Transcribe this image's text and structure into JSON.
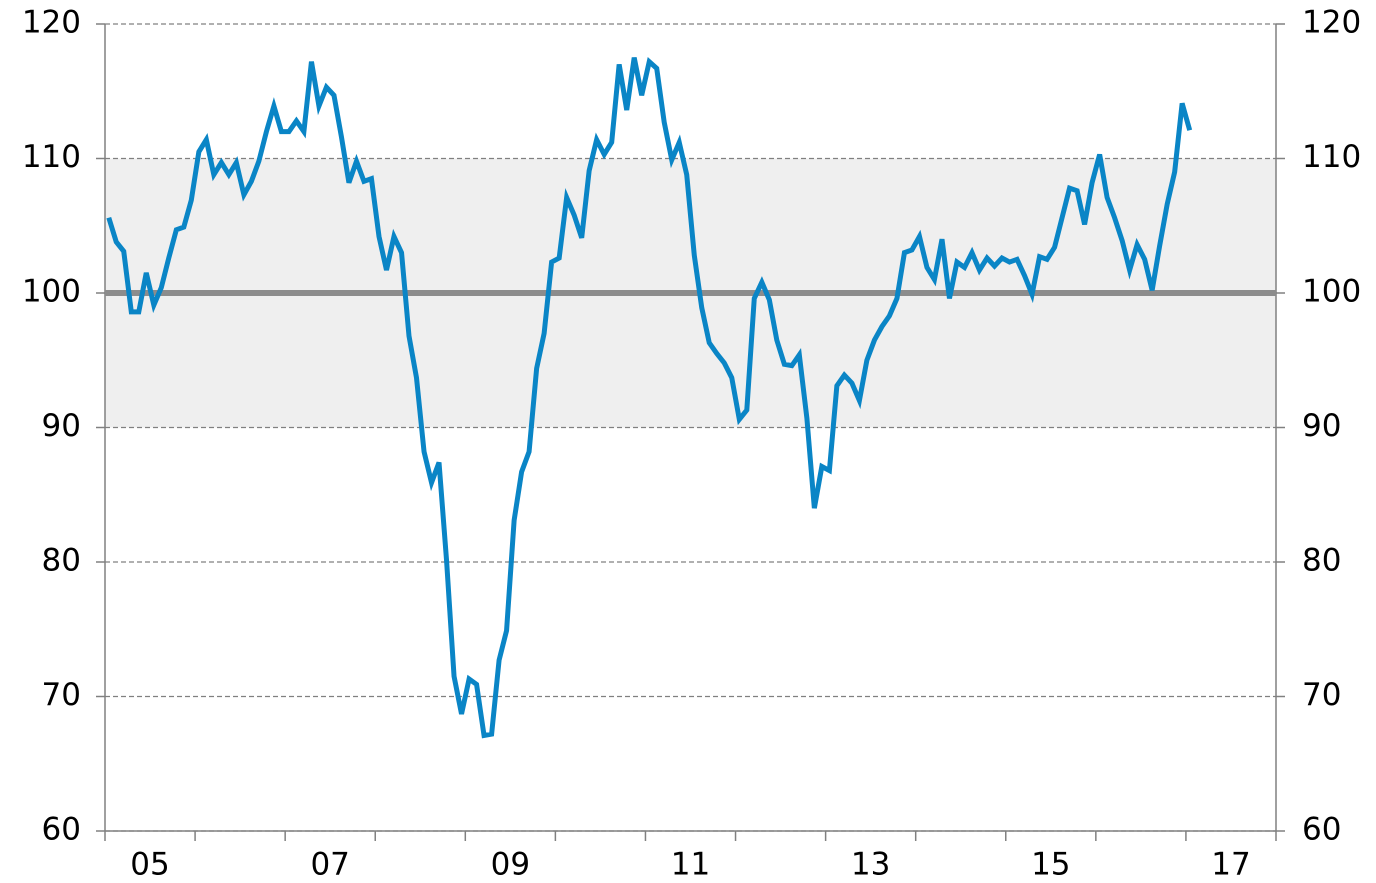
{
  "chart_data": {
    "type": "line",
    "x": [
      2005.042,
      2005.125,
      2005.208,
      2005.292,
      2005.375,
      2005.458,
      2005.542,
      2005.625,
      2005.708,
      2005.792,
      2005.875,
      2005.958,
      2006.042,
      2006.125,
      2006.208,
      2006.292,
      2006.375,
      2006.458,
      2006.542,
      2006.625,
      2006.708,
      2006.792,
      2006.875,
      2006.958,
      2007.042,
      2007.125,
      2007.208,
      2007.292,
      2007.375,
      2007.458,
      2007.542,
      2007.625,
      2007.708,
      2007.792,
      2007.875,
      2007.958,
      2008.042,
      2008.125,
      2008.208,
      2008.292,
      2008.375,
      2008.458,
      2008.542,
      2008.625,
      2008.708,
      2008.792,
      2008.875,
      2008.958,
      2009.042,
      2009.125,
      2009.208,
      2009.292,
      2009.375,
      2009.458,
      2009.542,
      2009.625,
      2009.708,
      2009.792,
      2009.875,
      2009.958,
      2010.042,
      2010.125,
      2010.208,
      2010.292,
      2010.375,
      2010.458,
      2010.542,
      2010.625,
      2010.708,
      2010.792,
      2010.875,
      2010.958,
      2011.042,
      2011.125,
      2011.208,
      2011.292,
      2011.375,
      2011.458,
      2011.542,
      2011.625,
      2011.708,
      2011.792,
      2011.875,
      2011.958,
      2012.042,
      2012.125,
      2012.208,
      2012.292,
      2012.375,
      2012.458,
      2012.542,
      2012.625,
      2012.708,
      2012.792,
      2012.875,
      2012.958,
      2013.042,
      2013.125,
      2013.208,
      2013.292,
      2013.375,
      2013.458,
      2013.542,
      2013.625,
      2013.708,
      2013.792,
      2013.875,
      2013.958,
      2014.042,
      2014.125,
      2014.208,
      2014.292,
      2014.375,
      2014.458,
      2014.542,
      2014.625,
      2014.708,
      2014.792,
      2014.875,
      2014.958,
      2015.042,
      2015.125,
      2015.208,
      2015.292,
      2015.375,
      2015.458,
      2015.542,
      2015.625,
      2015.708,
      2015.792,
      2015.875,
      2015.958,
      2016.042,
      2016.125,
      2016.208,
      2016.292,
      2016.375,
      2016.458,
      2016.542,
      2016.625,
      2016.708,
      2016.792,
      2016.875,
      2016.958,
      2017.042
    ],
    "series": [
      {
        "color": "#0a85c6",
        "values": [
          105.6,
          103.8,
          103.1,
          98.6,
          98.6,
          101.5,
          99.1,
          100.4,
          102.6,
          104.7,
          104.9,
          106.9,
          110.5,
          111.4,
          108.8,
          109.7,
          108.8,
          109.7,
          107.3,
          108.3,
          109.8,
          112.0,
          113.9,
          112.0,
          112.0,
          112.8,
          112.0,
          117.2,
          113.9,
          115.3,
          114.7,
          111.6,
          108.2,
          109.8,
          108.3,
          108.5,
          104.2,
          101.7,
          104.2,
          103.0,
          96.8,
          93.7,
          88.2,
          85.9,
          87.4,
          80.1,
          71.5,
          68.7,
          71.3,
          70.9,
          67.1,
          67.2,
          72.7,
          74.9,
          83.1,
          86.7,
          88.2,
          94.4,
          97.0,
          102.3,
          102.6,
          107.1,
          105.8,
          104.1,
          109.1,
          111.4,
          110.3,
          111.2,
          117.0,
          113.6,
          117.5,
          114.7,
          117.2,
          116.7,
          112.7,
          109.9,
          111.2,
          108.8,
          102.8,
          98.9,
          96.3,
          95.5,
          94.8,
          93.7,
          90.6,
          91.3,
          99.6,
          100.8,
          99.5,
          96.5,
          94.7,
          94.6,
          95.4,
          90.7,
          84.0,
          87.1,
          86.8,
          93.1,
          93.9,
          93.3,
          92.0,
          95.0,
          96.5,
          97.5,
          98.3,
          99.6,
          103.0,
          103.2,
          104.2,
          101.9,
          101.0,
          104.0,
          99.6,
          102.3,
          101.9,
          103.0,
          101.7,
          102.6,
          102.0,
          102.6,
          102.3,
          102.5,
          101.3,
          99.9,
          102.7,
          102.5,
          103.4,
          105.6,
          107.8,
          107.6,
          105.1,
          108.2,
          110.3,
          107.1,
          105.6,
          103.9,
          101.7,
          103.6,
          102.5,
          100.2,
          103.5,
          106.6,
          109.0,
          114.1,
          112.1
        ]
      }
    ],
    "xlim": [
      2005,
      2018
    ],
    "xticks": [
      {
        "value": 2005.5,
        "label": "05"
      },
      {
        "value": 2007.5,
        "label": "07"
      },
      {
        "value": 2009.5,
        "label": "09"
      },
      {
        "value": 2011.5,
        "label": "11"
      },
      {
        "value": 2013.5,
        "label": "13"
      },
      {
        "value": 2015.5,
        "label": "15"
      },
      {
        "value": 2017.5,
        "label": "17"
      }
    ],
    "xminorticks": [
      2005,
      2006,
      2007,
      2008,
      2009,
      2010,
      2011,
      2012,
      2013,
      2014,
      2015,
      2016,
      2017,
      2018
    ],
    "ylim": [
      60,
      120
    ],
    "yticks": [
      60,
      70,
      80,
      90,
      100,
      110,
      120
    ],
    "y2lim": [
      60,
      120
    ],
    "y2ticks": [
      60,
      70,
      80,
      90,
      100,
      110,
      120
    ],
    "grid": true,
    "band": [
      90,
      110
    ],
    "band_color": "#efefef",
    "hline": 100,
    "hline_color": "#8c8c8c"
  }
}
